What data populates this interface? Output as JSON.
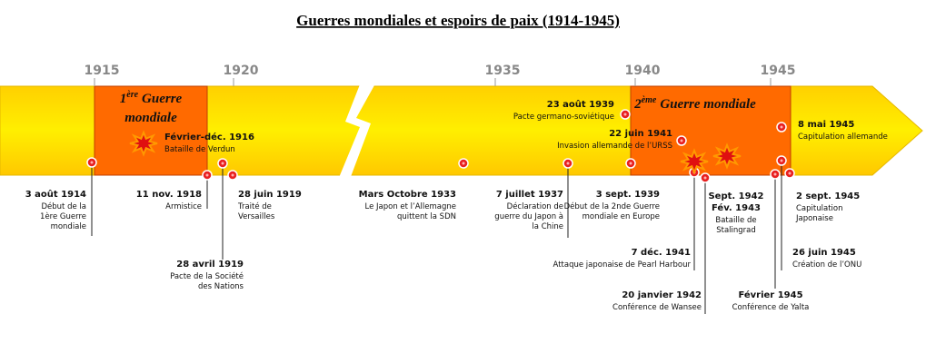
{
  "title": "Guerres mondiales et espoirs de paix (1914-1945)",
  "years": [
    "1915",
    "1920",
    "1935",
    "1940",
    "1945"
  ],
  "periods": [
    {
      "num": "1",
      "sup": "ère",
      "line1": "Guerre",
      "line2": "mondiale"
    },
    {
      "num": "2",
      "sup": "ème",
      "line1": "Guerre mondiale"
    }
  ],
  "events": [
    {
      "date": "3 août 1914",
      "lines": [
        "Début de la",
        "1ère Guerre",
        "mondiale"
      ]
    },
    {
      "date": "Février-déc. 1916",
      "lines": [
        "Bataille de Verdun"
      ]
    },
    {
      "date": "11 nov. 1918",
      "lines": [
        "Armistice"
      ]
    },
    {
      "date": "28 avril 1919",
      "lines": [
        "Pacte de la Société",
        "des Nations"
      ]
    },
    {
      "date": "28 juin 1919",
      "lines": [
        "Traité de",
        "Versailles"
      ]
    },
    {
      "date": "Mars Octobre 1933",
      "lines": [
        "Le Japon et l’Allemagne",
        "quittent la SDN"
      ]
    },
    {
      "date": "7 juillet 1937",
      "lines": [
        "Déclaration de",
        "guerre du Japon à",
        "la Chine"
      ]
    },
    {
      "date": "23 août 1939",
      "lines": [
        "Pacte germano-soviétique"
      ]
    },
    {
      "date": "22 juin 1941",
      "lines": [
        "Invasion allemande de l’URSS"
      ]
    },
    {
      "date": "3 sept. 1939",
      "lines": [
        "Début de la 2nde Guerre",
        "mondiale en Europe"
      ]
    },
    {
      "date": "7 déc. 1941",
      "lines": [
        "Attaque japonaise de Pearl Harbour"
      ]
    },
    {
      "date": "20 janvier 1942",
      "lines": [
        "Conférence de Wansee"
      ]
    },
    {
      "date": "Sept. 1942",
      "date2": "Fév. 1943",
      "lines": [
        "Bataille de",
        "Stalingrad"
      ]
    },
    {
      "date": "8 mai 1945",
      "lines": [
        "Capitulation allemande"
      ]
    },
    {
      "date": "Février 1945",
      "lines": [
        "Conférence de Yalta"
      ]
    },
    {
      "date": "26 juin 1945",
      "lines": [
        "Création de l’ONU"
      ]
    },
    {
      "date": "2 sept. 1945",
      "lines": [
        "Capitulation",
        "Japonaise"
      ]
    }
  ]
}
